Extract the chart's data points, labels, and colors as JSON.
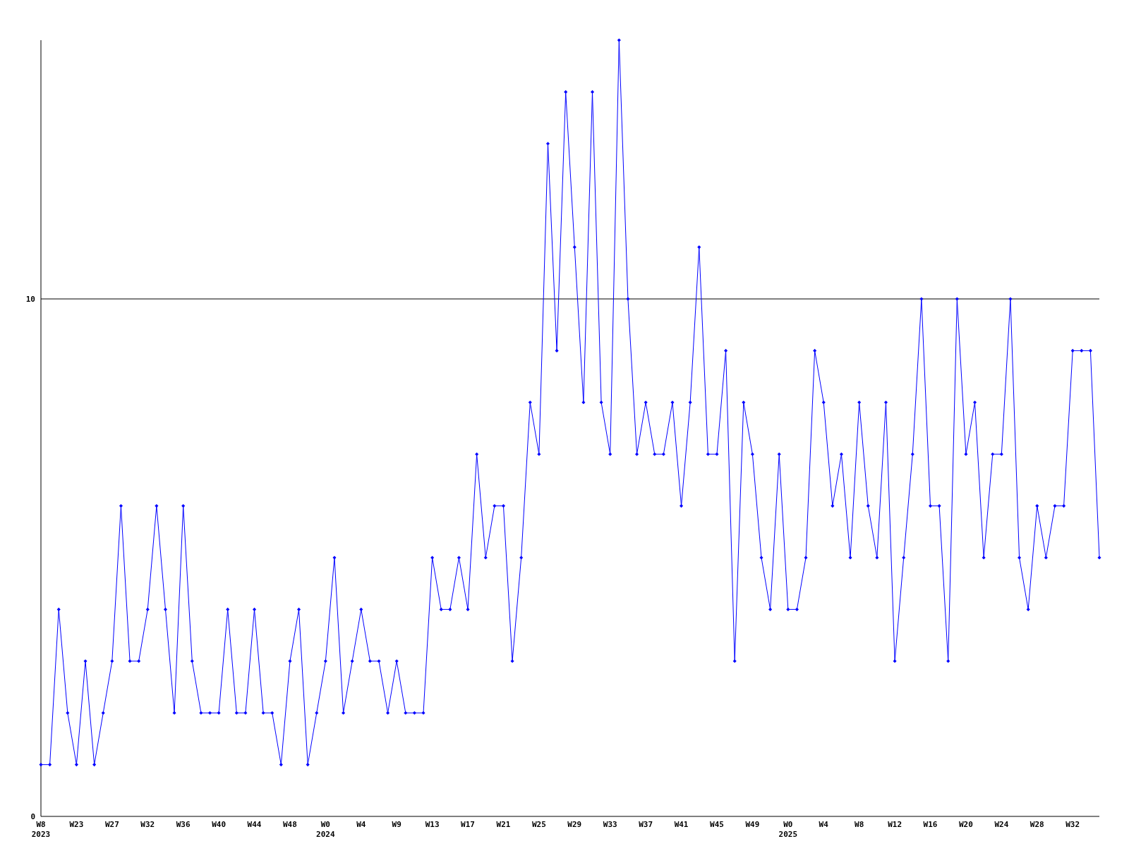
{
  "chart_data": {
    "type": "line",
    "categories": [
      "W8\n2023",
      null,
      null,
      null,
      "W23",
      null,
      null,
      null,
      "W27",
      null,
      null,
      null,
      "W32",
      null,
      null,
      null,
      "W36",
      null,
      null,
      null,
      "W40",
      null,
      null,
      null,
      "W44",
      null,
      null,
      null,
      "W48",
      null,
      null,
      null,
      "W0\n2024",
      null,
      null,
      null,
      "W4",
      null,
      null,
      null,
      "W9",
      null,
      null,
      null,
      "W13",
      null,
      null,
      null,
      "W17",
      null,
      null,
      null,
      "W21",
      null,
      null,
      null,
      "W25",
      null,
      null,
      null,
      "W29",
      null,
      null,
      null,
      "W33",
      null,
      null,
      null,
      "W37",
      null,
      null,
      null,
      "W41",
      null,
      null,
      null,
      "W45",
      null,
      null,
      null,
      "W49",
      null,
      null,
      null,
      "W0\n2025",
      null,
      null,
      null,
      "W4",
      null,
      null,
      null,
      "W8",
      null,
      null,
      null,
      "W12",
      null,
      null,
      null,
      "W16",
      null,
      null,
      null,
      "W20",
      null,
      null,
      null,
      "W24",
      null,
      null,
      null,
      "W28",
      null,
      null,
      null,
      "W32",
      null,
      null,
      null
    ],
    "series": [
      {
        "color": "#0000ff",
        "values": [
          1,
          1,
          4,
          2,
          1,
          3,
          1,
          2,
          3,
          6,
          3,
          3,
          4,
          6,
          4,
          2,
          6,
          3,
          2,
          2,
          2,
          4,
          2,
          2,
          4,
          2,
          2,
          1,
          3,
          4,
          1,
          2,
          3,
          5,
          2,
          3,
          4,
          3,
          3,
          2,
          3,
          2,
          2,
          2,
          5,
          4,
          4,
          5,
          4,
          7,
          5,
          6,
          6,
          3,
          5,
          8,
          7,
          13,
          9,
          14,
          11,
          8,
          14,
          8,
          7,
          15,
          10,
          7,
          8,
          7,
          7,
          8,
          6,
          8,
          11,
          7,
          7,
          9,
          3,
          8,
          7,
          5,
          4,
          7,
          4,
          4,
          5,
          9,
          8,
          6,
          7,
          5,
          8,
          6,
          5,
          8,
          3,
          5,
          7,
          10,
          6,
          6,
          3,
          10,
          7,
          8,
          5,
          7,
          7,
          10,
          5,
          4,
          6,
          5,
          6,
          6,
          9,
          9,
          9,
          5
        ]
      }
    ],
    "ylim": [
      0,
      15
    ],
    "yticks": [
      0,
      10
    ],
    "marker": "diamond",
    "grid": false,
    "ref_lines": [
      {
        "axis": "y",
        "value": 10,
        "color": "#000000"
      }
    ]
  }
}
